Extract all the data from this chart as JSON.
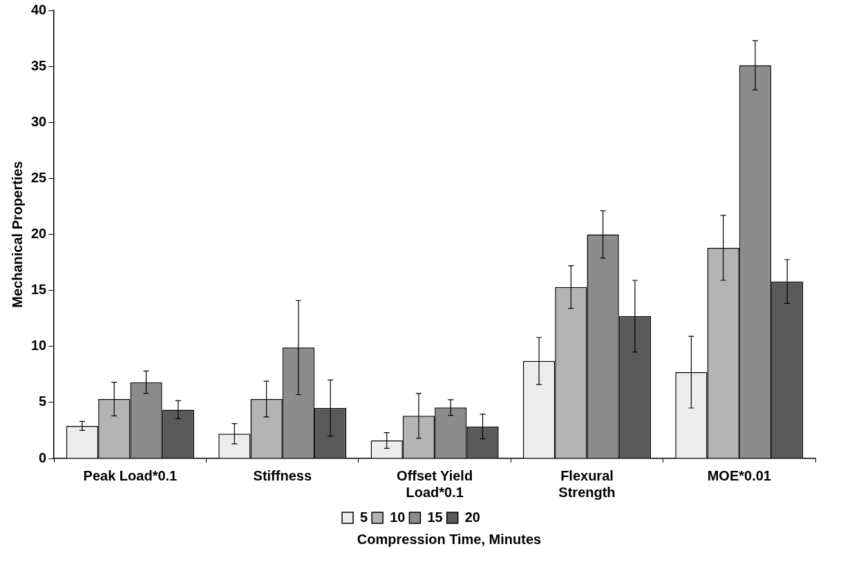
{
  "chart_data": {
    "type": "bar",
    "xlabel": "Compression Time, Minutes",
    "ylabel": "Mechanical Properties",
    "categories": [
      "Peak Load*0.1",
      "Stiffness",
      "Offset Yield Load*0.1",
      "Flexural Strength",
      "MOE*0.01"
    ],
    "series": [
      {
        "name": "5",
        "color": "#ececec",
        "values": [
          2.9,
          2.2,
          1.6,
          8.7,
          7.7
        ],
        "errors": [
          0.4,
          0.9,
          0.7,
          2.1,
          3.2
        ]
      },
      {
        "name": "10",
        "color": "#b4b4b4",
        "values": [
          5.3,
          5.3,
          3.8,
          15.3,
          18.8
        ],
        "errors": [
          1.5,
          1.6,
          2.0,
          1.9,
          2.9
        ]
      },
      {
        "name": "15",
        "color": "#8c8c8c",
        "values": [
          6.8,
          9.9,
          4.55,
          20.0,
          35.1
        ],
        "errors": [
          1.0,
          4.2,
          0.7,
          2.1,
          2.2
        ]
      },
      {
        "name": "20",
        "color": "#5a5a5a",
        "values": [
          4.35,
          4.5,
          2.85,
          12.7,
          15.8
        ],
        "errors": [
          0.8,
          2.5,
          1.1,
          3.2,
          1.95
        ]
      }
    ],
    "ylim": [
      0,
      40
    ],
    "yticks": [
      0,
      5,
      10,
      15,
      20,
      25,
      30,
      35,
      40
    ],
    "grid": false,
    "legend": "bottom"
  }
}
